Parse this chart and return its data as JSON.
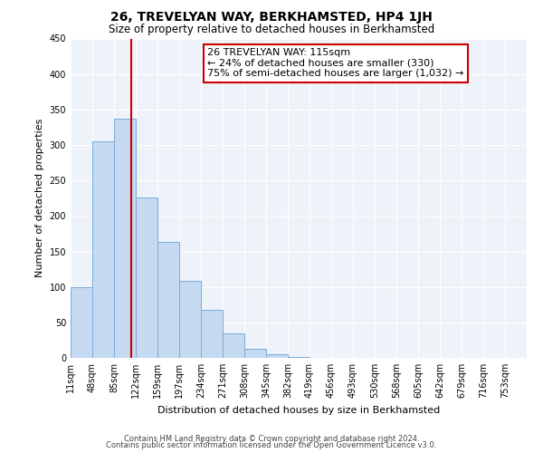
{
  "title": "26, TREVELYAN WAY, BERKHAMSTED, HP4 1JH",
  "subtitle": "Size of property relative to detached houses in Berkhamsted",
  "xlabel": "Distribution of detached houses by size in Berkhamsted",
  "ylabel": "Number of detached properties",
  "bar_values": [
    100,
    305,
    337,
    226,
    163,
    109,
    68,
    34,
    13,
    5,
    1,
    0,
    0,
    0,
    0,
    0,
    0,
    0,
    0,
    0
  ],
  "bin_labels": [
    "11sqm",
    "48sqm",
    "85sqm",
    "122sqm",
    "159sqm",
    "197sqm",
    "234sqm",
    "271sqm",
    "308sqm",
    "345sqm",
    "382sqm",
    "419sqm",
    "456sqm",
    "493sqm",
    "530sqm",
    "568sqm",
    "605sqm",
    "642sqm",
    "679sqm",
    "716sqm",
    "753sqm"
  ],
  "ylim": [
    0,
    450
  ],
  "yticks": [
    0,
    50,
    100,
    150,
    200,
    250,
    300,
    350,
    400,
    450
  ],
  "bar_color": "#c5d9f1",
  "bar_edge_color": "#7aacda",
  "vline_color": "#cc0000",
  "property_size": 115,
  "annotation_title": "26 TREVELYAN WAY: 115sqm",
  "annotation_line2": "← 24% of detached houses are smaller (330)",
  "annotation_line3": "75% of semi-detached houses are larger (1,032) →",
  "annotation_box_color": "#ffffff",
  "annotation_box_edge_color": "#cc0000",
  "footnote1": "Contains HM Land Registry data © Crown copyright and database right 2024.",
  "footnote2": "Contains public sector information licensed under the Open Government Licence v3.0.",
  "bin_edges": [
    11,
    48,
    85,
    122,
    159,
    197,
    234,
    271,
    308,
    345,
    382,
    419,
    456,
    493,
    530,
    568,
    605,
    642,
    679,
    716,
    753
  ],
  "background_color": "#eef2f9",
  "grid_color": "#ffffff",
  "title_fontsize": 10,
  "subtitle_fontsize": 8.5,
  "ylabel_fontsize": 8,
  "xlabel_fontsize": 8,
  "tick_fontsize": 7,
  "footnote_fontsize": 6
}
